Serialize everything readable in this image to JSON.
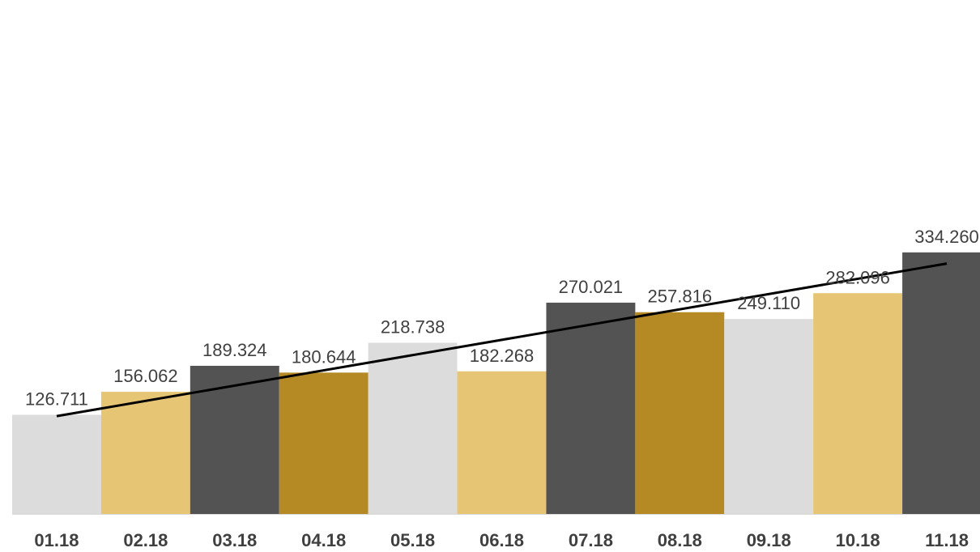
{
  "chart_data": {
    "type": "bar",
    "categories": [
      "01.18",
      "02.18",
      "03.18",
      "04.18",
      "05.18",
      "06.18",
      "07.18",
      "08.18",
      "09.18",
      "10.18",
      "11.18"
    ],
    "values": [
      126711,
      156062,
      189324,
      180644,
      218738,
      182268,
      270021,
      257816,
      249110,
      282096,
      334260
    ],
    "value_labels": [
      "126.711",
      "156.062",
      "189.324",
      "180.644",
      "218.738",
      "182.268",
      "270.021",
      "257.816",
      "249.110",
      "282.096",
      "334.260"
    ],
    "bar_colors": [
      "#dcdcdc",
      "#e6c574",
      "#535353",
      "#b58a25",
      "#dcdcdc",
      "#e6c574",
      "#535353",
      "#b58a25",
      "#dcdcdc",
      "#e6c574",
      "#535353"
    ],
    "trendline": {
      "type": "linear",
      "color": "#000000",
      "start_value": 125000,
      "end_value": 320000
    },
    "ylim": [
      0,
      360000
    ],
    "title": "",
    "xlabel": "",
    "ylabel": "",
    "grid": false,
    "legend": false,
    "axis_line_color": "#d9d9d9"
  }
}
